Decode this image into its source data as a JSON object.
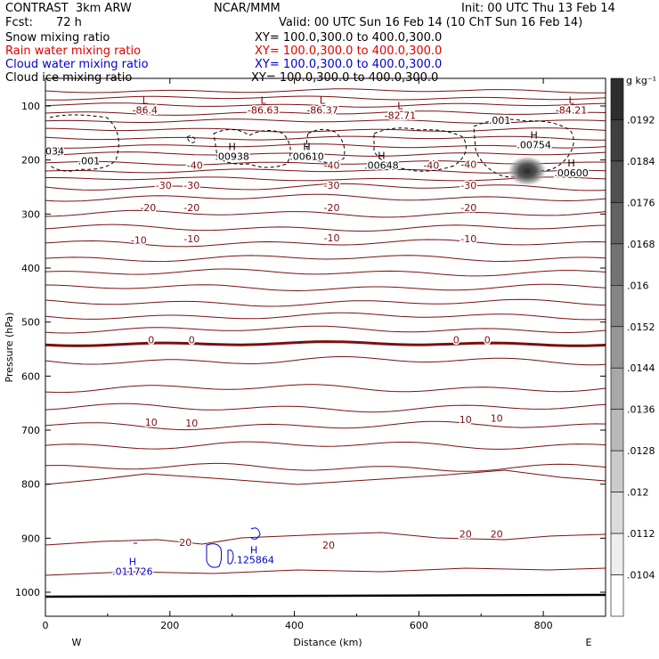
{
  "header": {
    "title": "CONTRAST  3km ARW",
    "fcst_label": "Fcst:",
    "fcst_value": "72 h",
    "center": "NCAR/MMM",
    "init": "Init: 00 UTC Thu 13 Feb 14",
    "valid": "Valid: 00 UTC Sun 16 Feb 14 (10 ChT Sun 16 Feb 14)"
  },
  "fields": [
    {
      "name": "Snow mixing ratio",
      "xy": "XY= 100.0,300.0 to 400.0,300.0",
      "color": "#000000"
    },
    {
      "name": "Rain water mixing ratio",
      "xy": "XY= 100.0,300.0 to 400.0,300.0",
      "color": "#e00000"
    },
    {
      "name": "Cloud water mixing ratio",
      "xy": "XY= 100.0,300.0 to 400.0,300.0",
      "color": "#0000cc"
    },
    {
      "name": "Cloud ice mixing ratio",
      "xy": "XY= 100.0,300.0 to 400.0,300.0",
      "color": "#000000"
    }
  ],
  "chart_data": {
    "type": "contour",
    "xlabel": "Distance (km)",
    "ylabel": "Pressure (hPa)",
    "xlim": [
      0,
      900
    ],
    "ylim": [
      1050,
      70
    ],
    "x_ticks": [
      0,
      200,
      400,
      600,
      800
    ],
    "y_ticks": [
      100,
      200,
      300,
      400,
      500,
      600,
      700,
      800,
      900,
      1000
    ],
    "x_end_labels": {
      "left": "W",
      "right": "E"
    },
    "colorbar": {
      "unit": "g kg⁻¹",
      "levels": [
        0.0104,
        0.0112,
        0.012,
        0.0128,
        0.0136,
        0.0144,
        0.0152,
        0.016,
        0.0168,
        0.0176,
        0.0184,
        0.0192
      ],
      "labels": [
        ".0104",
        ".0112",
        ".012",
        ".0128",
        ".0136",
        ".0144",
        ".0152",
        ".016",
        ".0168",
        ".0176",
        ".0184",
        ".0192"
      ]
    },
    "temperature_labels": [
      {
        "text": "-40",
        "x": 240,
        "p": 210
      },
      {
        "text": "-40",
        "x": 460,
        "p": 210
      },
      {
        "text": "-40",
        "x": 620,
        "p": 210
      },
      {
        "text": "-40",
        "x": 680,
        "p": 208
      },
      {
        "text": "-30",
        "x": 190,
        "p": 247
      },
      {
        "text": "-30",
        "x": 235,
        "p": 247
      },
      {
        "text": "-30",
        "x": 460,
        "p": 247
      },
      {
        "text": "-30",
        "x": 680,
        "p": 247
      },
      {
        "text": "-20",
        "x": 165,
        "p": 288
      },
      {
        "text": "-20",
        "x": 235,
        "p": 288
      },
      {
        "text": "-20",
        "x": 460,
        "p": 288
      },
      {
        "text": "-20",
        "x": 680,
        "p": 288
      },
      {
        "text": "-10",
        "x": 150,
        "p": 348
      },
      {
        "text": "-10",
        "x": 235,
        "p": 346
      },
      {
        "text": "-10",
        "x": 460,
        "p": 344
      },
      {
        "text": "-10",
        "x": 680,
        "p": 346
      },
      {
        "text": "0",
        "x": 170,
        "p": 533
      },
      {
        "text": "0",
        "x": 235,
        "p": 533
      },
      {
        "text": "0",
        "x": 660,
        "p": 533
      },
      {
        "text": "0",
        "x": 710,
        "p": 533
      },
      {
        "text": "10",
        "x": 170,
        "p": 685
      },
      {
        "text": "10",
        "x": 235,
        "p": 687
      },
      {
        "text": "10",
        "x": 675,
        "p": 680
      },
      {
        "text": "10",
        "x": 725,
        "p": 678
      },
      {
        "text": "20",
        "x": 225,
        "p": 908
      },
      {
        "text": "20",
        "x": 455,
        "p": 913
      },
      {
        "text": "20",
        "x": 675,
        "p": 892
      },
      {
        "text": "20",
        "x": 725,
        "p": 892
      }
    ],
    "extrema": [
      {
        "type": "L",
        "value": "-86.4",
        "x": 160,
        "p": 96,
        "color": "#7a0000"
      },
      {
        "type": "L",
        "value": "-86.63",
        "x": 350,
        "p": 96,
        "color": "#7a0000"
      },
      {
        "type": "L",
        "value": "-86.37",
        "x": 445,
        "p": 96,
        "color": "#7a0000"
      },
      {
        "type": "L",
        "value": "-82.71",
        "x": 570,
        "p": 106,
        "color": "#7a0000"
      },
      {
        "type": "L",
        "value": "-84.21",
        "x": 845,
        "p": 96,
        "color": "#7a0000"
      },
      {
        "type": "H",
        "value": ".00938",
        "x": 300,
        "p": 182,
        "color": "#000000"
      },
      {
        "type": "H",
        "value": ".00610",
        "x": 420,
        "p": 182,
        "color": "#000000"
      },
      {
        "type": "H",
        "value": ".00648",
        "x": 540,
        "p": 198,
        "color": "#000000"
      },
      {
        "type": "H",
        "value": ".00754",
        "x": 785,
        "p": 160,
        "color": "#000000"
      },
      {
        "type": "H",
        "value": ".00600",
        "x": 845,
        "p": 212,
        "color": "#000000"
      },
      {
        "type": "H",
        "value": ".011726",
        "x": 140,
        "p": 950,
        "color": "#0000cc"
      },
      {
        "type": "H",
        "value": ".125864",
        "x": 335,
        "p": 928,
        "color": "#0000cc"
      }
    ],
    "cloud_ice_labels": [
      {
        "text": ".001",
        "x": 70,
        "p": 208
      },
      {
        "text": "034",
        "x": 15,
        "p": 190
      },
      {
        "text": ".001",
        "x": 730,
        "p": 133
      }
    ]
  }
}
